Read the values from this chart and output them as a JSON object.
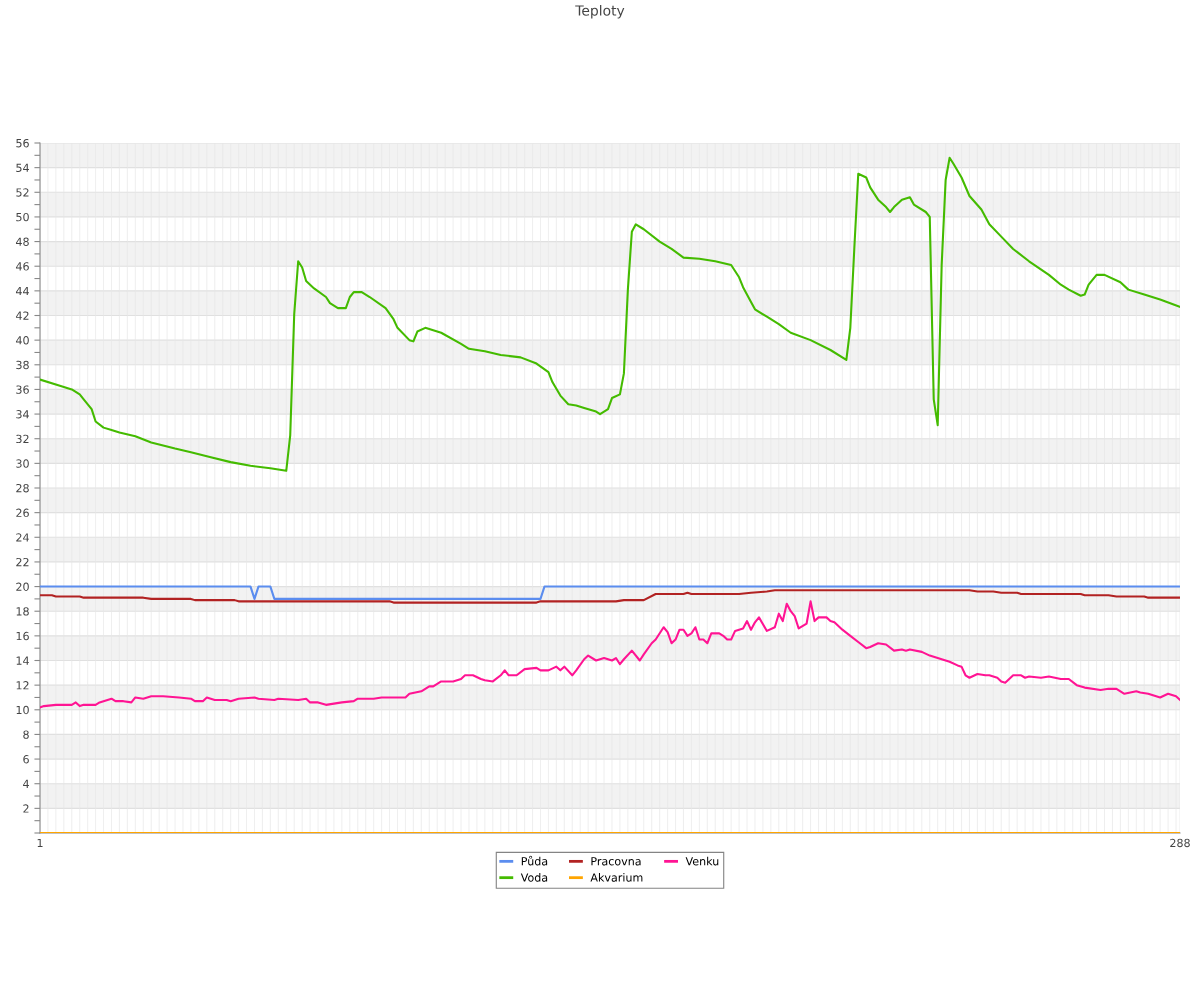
{
  "chart_data": {
    "type": "line",
    "title": "Teploty",
    "xlim": [
      1,
      288
    ],
    "xticks": [
      1,
      {
        "value": 3,
        "label": null
      },
      {
        "value": 5,
        "label": null
      },
      {
        "value": 7,
        "label": null
      },
      {
        "value": 9,
        "label": null
      },
      {
        "value": 11,
        "label": null
      },
      {
        "value": 13,
        "label": null
      },
      {
        "value": 15,
        "label": null
      },
      {
        "value": 17,
        "label": null
      },
      {
        "value": 19,
        "label": null
      },
      {
        "value": 21,
        "label": null
      },
      {
        "value": 23,
        "label": null
      },
      {
        "value": 25,
        "label": null
      },
      {
        "value": 27,
        "label": null
      },
      {
        "value": 29,
        "label": null
      },
      {
        "value": 31,
        "label": null
      },
      {
        "value": 33,
        "label": null
      },
      {
        "value": 35,
        "label": null
      },
      {
        "value": 37,
        "label": null
      },
      {
        "value": 39,
        "label": null
      },
      {
        "value": 41,
        "label": null
      },
      {
        "value": 43,
        "label": null
      },
      {
        "value": 45,
        "label": null
      },
      {
        "value": 47,
        "label": null
      },
      {
        "value": 49,
        "label": null
      },
      {
        "value": 51,
        "label": null
      },
      {
        "value": 53,
        "label": null
      },
      {
        "value": 55,
        "label": null
      },
      {
        "value": 57,
        "label": null
      },
      {
        "value": 59,
        "label": null
      },
      {
        "value": 61,
        "label": null
      },
      {
        "value": 63,
        "label": null
      },
      {
        "value": 65,
        "label": null
      },
      {
        "value": 67,
        "label": null
      },
      {
        "value": 69,
        "label": null
      },
      {
        "value": 71,
        "label": null
      },
      {
        "value": 73,
        "label": null
      },
      {
        "value": 75,
        "label": null
      },
      {
        "value": 77,
        "label": null
      },
      {
        "value": 79,
        "label": null
      },
      {
        "value": 81,
        "label": null
      },
      {
        "value": 83,
        "label": null
      },
      {
        "value": 85,
        "label": null
      },
      {
        "value": 87,
        "label": null
      },
      {
        "value": 89,
        "label": null
      },
      {
        "value": 91,
        "label": null
      },
      {
        "value": 93,
        "label": null
      },
      {
        "value": 95,
        "label": null
      },
      {
        "value": 97,
        "label": null
      },
      {
        "value": 99,
        "label": null
      },
      {
        "value": 101,
        "label": null
      },
      {
        "value": 103,
        "label": null
      },
      {
        "value": 105,
        "label": null
      },
      {
        "value": 107,
        "label": null
      },
      {
        "value": 109,
        "label": null
      },
      {
        "value": 111,
        "label": null
      },
      {
        "value": 113,
        "label": null
      },
      {
        "value": 115,
        "label": null
      },
      {
        "value": 117,
        "label": null
      },
      {
        "value": 119,
        "label": null
      },
      {
        "value": 121,
        "label": null
      },
      {
        "value": 123,
        "label": null
      },
      {
        "value": 125,
        "label": null
      },
      {
        "value": 127,
        "label": null
      },
      {
        "value": 129,
        "label": null
      },
      {
        "value": 131,
        "label": null
      },
      {
        "value": 133,
        "label": null
      },
      {
        "value": 135,
        "label": null
      },
      {
        "value": 137,
        "label": null
      },
      {
        "value": 139,
        "label": null
      },
      {
        "value": 141,
        "label": null
      },
      {
        "value": 143,
        "label": null
      },
      {
        "value": 145,
        "label": null
      },
      {
        "value": 147,
        "label": null
      },
      {
        "value": 149,
        "label": null
      },
      {
        "value": 151,
        "label": null
      },
      {
        "value": 153,
        "label": null
      },
      {
        "value": 155,
        "label": null
      },
      {
        "value": 157,
        "label": null
      },
      {
        "value": 159,
        "label": null
      },
      {
        "value": 161,
        "label": null
      },
      {
        "value": 163,
        "label": null
      },
      {
        "value": 165,
        "label": null
      },
      {
        "value": 167,
        "label": null
      },
      {
        "value": 169,
        "label": null
      },
      {
        "value": 171,
        "label": null
      },
      {
        "value": 173,
        "label": null
      },
      {
        "value": 175,
        "label": null
      },
      {
        "value": 177,
        "label": null
      },
      {
        "value": 179,
        "label": null
      },
      {
        "value": 181,
        "label": null
      },
      {
        "value": 183,
        "label": null
      },
      {
        "value": 185,
        "label": null
      },
      {
        "value": 187,
        "label": null
      },
      {
        "value": 189,
        "label": null
      },
      {
        "value": 191,
        "label": null
      },
      {
        "value": 193,
        "label": null
      },
      {
        "value": 195,
        "label": null
      },
      {
        "value": 197,
        "label": null
      },
      {
        "value": 199,
        "label": null
      },
      {
        "value": 201,
        "label": null
      },
      {
        "value": 203,
        "label": null
      },
      {
        "value": 205,
        "label": null
      },
      {
        "value": 207,
        "label": null
      },
      {
        "value": 209,
        "label": null
      },
      {
        "value": 211,
        "label": null
      },
      {
        "value": 213,
        "label": null
      },
      {
        "value": 215,
        "label": null
      },
      {
        "value": 217,
        "label": null
      },
      {
        "value": 219,
        "label": null
      },
      {
        "value": 221,
        "label": null
      },
      {
        "value": 223,
        "label": null
      },
      {
        "value": 225,
        "label": null
      },
      {
        "value": 227,
        "label": null
      },
      {
        "value": 229,
        "label": null
      },
      {
        "value": 231,
        "label": null
      },
      {
        "value": 233,
        "label": null
      },
      {
        "value": 235,
        "label": null
      },
      {
        "value": 237,
        "label": null
      },
      {
        "value": 239,
        "label": null
      },
      {
        "value": 241,
        "label": null
      },
      {
        "value": 243,
        "label": null
      },
      {
        "value": 245,
        "label": null
      },
      {
        "value": 247,
        "label": null
      },
      {
        "value": 249,
        "label": null
      },
      {
        "value": 251,
        "label": null
      },
      {
        "value": 253,
        "label": null
      },
      {
        "value": 255,
        "label": null
      },
      {
        "value": 257,
        "label": null
      },
      {
        "value": 259,
        "label": null
      },
      {
        "value": 261,
        "label": null
      },
      {
        "value": 263,
        "label": null
      },
      {
        "value": 265,
        "label": null
      },
      {
        "value": 267,
        "label": null
      },
      {
        "value": 269,
        "label": null
      },
      {
        "value": 271,
        "label": null
      },
      {
        "value": 273,
        "label": null
      },
      {
        "value": 275,
        "label": null
      },
      {
        "value": 277,
        "label": null
      },
      {
        "value": 279,
        "label": null
      },
      {
        "value": 281,
        "label": null
      },
      {
        "value": 283,
        "label": null
      },
      {
        "value": 285,
        "label": null
      },
      {
        "value": 287,
        "label": null
      },
      288
    ],
    "ylim": [
      0,
      56
    ],
    "yticks": [
      {
        "value": 0,
        "label": null
      },
      {
        "value": 1,
        "label": null
      },
      2,
      {
        "value": 3,
        "label": null
      },
      4,
      {
        "value": 5,
        "label": null
      },
      6,
      {
        "value": 7,
        "label": null
      },
      8,
      {
        "value": 9,
        "label": null
      },
      10,
      {
        "value": 11,
        "label": null
      },
      12,
      {
        "value": 13,
        "label": null
      },
      14,
      {
        "value": 15,
        "label": null
      },
      16,
      {
        "value": 17,
        "label": null
      },
      18,
      {
        "value": 19,
        "label": null
      },
      20,
      {
        "value": 21,
        "label": null
      },
      22,
      {
        "value": 23,
        "label": null
      },
      24,
      {
        "value": 25,
        "label": null
      },
      26,
      {
        "value": 27,
        "label": null
      },
      28,
      {
        "value": 29,
        "label": null
      },
      30,
      {
        "value": 31,
        "label": null
      },
      32,
      {
        "value": 33,
        "label": null
      },
      34,
      {
        "value": 35,
        "label": null
      },
      36,
      {
        "value": 37,
        "label": null
      },
      38,
      {
        "value": 39,
        "label": null
      },
      40,
      {
        "value": 41,
        "label": null
      },
      42,
      {
        "value": 43,
        "label": null
      },
      44,
      {
        "value": 45,
        "label": null
      },
      46,
      {
        "value": 47,
        "label": null
      },
      48,
      {
        "value": 49,
        "label": null
      },
      50,
      {
        "value": 51,
        "label": null
      },
      52,
      {
        "value": 53,
        "label": null
      },
      54,
      {
        "value": 55,
        "label": null
      },
      56
    ],
    "grid": true,
    "legend": "bottom",
    "marker": "none",
    "line_style": "solid",
    "series": [
      {
        "name": "Půda",
        "color": "#5b8def",
        "x": [
          1,
          54,
          55,
          56,
          59,
          60,
          127,
          128,
          288
        ],
        "values": [
          20,
          20,
          19,
          20,
          20,
          19,
          19,
          20,
          20
        ]
      },
      {
        "name": "Voda",
        "color": "#44bb00",
        "x": [
          1,
          6,
          9,
          11,
          12,
          14,
          15,
          17,
          19,
          21,
          25,
          29,
          35,
          39,
          44,
          49,
          54,
          59,
          63,
          64,
          65,
          66,
          67,
          68,
          70,
          73,
          74,
          76,
          78,
          79,
          80,
          82,
          84,
          88,
          90,
          91,
          94,
          95,
          96,
          98,
          102,
          107,
          109,
          113,
          117,
          122,
          126,
          129,
          130,
          132,
          134,
          136,
          138,
          141,
          142,
          144,
          145,
          147,
          148,
          149,
          150,
          151,
          153,
          157,
          160,
          163,
          167,
          171,
          175,
          177,
          178,
          180,
          181,
          184,
          187,
          190,
          195,
          200,
          204,
          205,
          206,
          207,
          209,
          210,
          212,
          214,
          215,
          216,
          218,
          220,
          221,
          224,
          225,
          226,
          227,
          228,
          229,
          230,
          231,
          233,
          235,
          238,
          240,
          243,
          246,
          250,
          255,
          258,
          260,
          263,
          264,
          265,
          267,
          269,
          273,
          275,
          279,
          283,
          288
        ],
        "values": [
          36.8,
          36.3,
          36.0,
          35.6,
          35.2,
          34.4,
          33.4,
          32.9,
          32.7,
          32.5,
          32.2,
          31.7,
          31.2,
          30.9,
          30.5,
          30.1,
          29.8,
          29.6,
          29.4,
          32.3,
          42.1,
          46.4,
          45.9,
          44.8,
          44.2,
          43.5,
          43.0,
          42.6,
          42.6,
          43.5,
          43.9,
          43.9,
          43.5,
          42.6,
          41.7,
          41.0,
          40.0,
          39.9,
          40.7,
          41.0,
          40.6,
          39.7,
          39.3,
          39.1,
          38.8,
          38.6,
          38.1,
          37.4,
          36.6,
          35.5,
          34.8,
          34.7,
          34.5,
          34.2,
          34.0,
          34.4,
          35.3,
          35.6,
          37.3,
          44.1,
          48.8,
          49.4,
          49.0,
          48.0,
          47.4,
          46.7,
          46.6,
          46.4,
          46.1,
          45.1,
          44.3,
          43.1,
          42.5,
          41.9,
          41.3,
          40.6,
          40.0,
          39.2,
          38.4,
          41.0,
          47.4,
          53.5,
          53.2,
          52.4,
          51.4,
          50.8,
          50.4,
          50.8,
          51.4,
          51.6,
          51.0,
          50.4,
          50.0,
          35.2,
          33.1,
          46.1,
          53.0,
          54.8,
          54.3,
          53.2,
          51.7,
          50.6,
          49.4,
          48.4,
          47.4,
          46.4,
          45.3,
          44.5,
          44.1,
          43.6,
          43.7,
          44.5,
          45.3,
          45.3,
          44.7,
          44.1,
          43.7,
          43.3,
          42.7
        ]
      },
      {
        "name": "Pracovna",
        "color": "#b22222",
        "x": [
          1,
          4,
          5,
          11,
          12,
          27,
          29,
          39,
          40,
          50,
          51,
          89,
          90,
          126,
          127,
          146,
          148,
          153,
          156,
          163,
          164,
          165,
          177,
          180,
          184,
          186,
          235,
          237,
          241,
          243,
          247,
          248,
          263,
          264,
          270,
          272,
          279,
          280,
          288
        ],
        "values": [
          19.3,
          19.3,
          19.2,
          19.2,
          19.1,
          19.1,
          19.0,
          19.0,
          18.9,
          18.9,
          18.8,
          18.8,
          18.7,
          18.7,
          18.8,
          18.8,
          18.9,
          18.9,
          19.4,
          19.4,
          19.5,
          19.4,
          19.4,
          19.5,
          19.6,
          19.7,
          19.7,
          19.6,
          19.6,
          19.5,
          19.5,
          19.4,
          19.4,
          19.3,
          19.3,
          19.2,
          19.2,
          19.1,
          19.1
        ]
      },
      {
        "name": "Akvarium",
        "color": "#ffa500",
        "x": [
          1,
          288
        ],
        "values": [
          0,
          0
        ]
      },
      {
        "name": "Venku",
        "color": "#ff1493",
        "x": [
          1,
          2,
          5,
          9,
          10,
          11,
          12,
          15,
          16,
          19,
          20,
          22,
          24,
          25,
          27,
          29,
          32,
          36,
          39,
          40,
          42,
          43,
          45,
          48,
          49,
          51,
          55,
          56,
          60,
          61,
          66,
          68,
          69,
          71,
          73,
          77,
          80,
          81,
          85,
          87,
          93,
          94,
          97,
          99,
          100,
          102,
          105,
          107,
          108,
          110,
          112,
          113,
          115,
          117,
          118,
          119,
          121,
          123,
          126,
          127,
          129,
          131,
          132,
          133,
          135,
          136,
          138,
          139,
          141,
          142,
          143,
          145,
          146,
          147,
          148,
          150,
          152,
          153,
          155,
          156,
          158,
          159,
          160,
          161,
          162,
          163,
          164,
          165,
          166,
          167,
          168,
          169,
          170,
          172,
          173,
          174,
          175,
          176,
          178,
          179,
          180,
          181,
          182,
          184,
          186,
          187,
          188,
          189,
          190,
          191,
          192,
          194,
          195,
          196,
          197,
          199,
          200,
          201,
          203,
          205,
          207,
          209,
          210,
          212,
          214,
          216,
          218,
          219,
          220,
          223,
          225,
          226,
          228,
          230,
          232,
          233,
          234,
          235,
          237,
          239,
          240,
          242,
          243,
          244,
          246,
          248,
          249,
          250,
          253,
          255,
          258,
          260,
          262,
          264,
          268,
          270,
          272,
          274,
          277,
          278,
          280,
          283,
          285,
          287,
          288
        ],
        "values": [
          10.2,
          10.3,
          10.4,
          10.4,
          10.6,
          10.3,
          10.4,
          10.4,
          10.6,
          10.9,
          10.7,
          10.7,
          10.6,
          11.0,
          10.9,
          11.1,
          11.1,
          11.0,
          10.9,
          10.7,
          10.7,
          11.0,
          10.8,
          10.8,
          10.7,
          10.9,
          11.0,
          10.9,
          10.8,
          10.9,
          10.8,
          10.9,
          10.6,
          10.6,
          10.4,
          10.6,
          10.7,
          10.9,
          10.9,
          11.0,
          11.0,
          11.3,
          11.5,
          11.9,
          11.9,
          12.3,
          12.3,
          12.5,
          12.8,
          12.8,
          12.5,
          12.4,
          12.3,
          12.8,
          13.2,
          12.8,
          12.8,
          13.3,
          13.4,
          13.2,
          13.2,
          13.5,
          13.2,
          13.5,
          12.8,
          13.2,
          14.1,
          14.4,
          14.0,
          14.1,
          14.2,
          14.0,
          14.2,
          13.7,
          14.1,
          14.8,
          14.0,
          14.5,
          15.4,
          15.7,
          16.7,
          16.3,
          15.4,
          15.7,
          16.5,
          16.5,
          16.0,
          16.2,
          16.7,
          15.7,
          15.7,
          15.4,
          16.2,
          16.2,
          16.0,
          15.7,
          15.7,
          16.4,
          16.6,
          17.2,
          16.5,
          17.1,
          17.5,
          16.4,
          16.7,
          17.8,
          17.2,
          18.6,
          18.0,
          17.6,
          16.6,
          17.0,
          18.8,
          17.2,
          17.5,
          17.5,
          17.2,
          17.1,
          16.5,
          16.0,
          15.5,
          15.0,
          15.1,
          15.4,
          15.3,
          14.8,
          14.9,
          14.8,
          14.9,
          14.7,
          14.4,
          14.3,
          14.1,
          13.9,
          13.6,
          13.5,
          12.8,
          12.6,
          12.9,
          12.8,
          12.8,
          12.6,
          12.3,
          12.2,
          12.8,
          12.8,
          12.6,
          12.7,
          12.6,
          12.7,
          12.5,
          12.5,
          12.0,
          11.8,
          11.6,
          11.7,
          11.7,
          11.3,
          11.5,
          11.4,
          11.3,
          11.0,
          11.3,
          11.1,
          10.8
        ]
      }
    ]
  }
}
